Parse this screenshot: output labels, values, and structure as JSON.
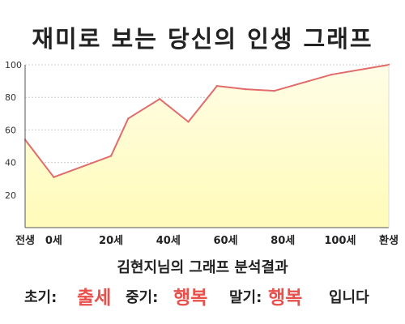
{
  "title": "재미로 보는 당신의 인생 그래프",
  "chart_data": {
    "type": "area",
    "x_labels": [
      "전생",
      "0세",
      "20세",
      "40세",
      "60세",
      "80세",
      "100세",
      "환생"
    ],
    "y_ticks": [
      "20",
      "40",
      "60",
      "80",
      "100"
    ],
    "ylim": [
      0,
      100
    ],
    "points": [
      {
        "x": -10,
        "y": 54
      },
      {
        "x": 0,
        "y": 31
      },
      {
        "x": 20,
        "y": 44
      },
      {
        "x": 26,
        "y": 67
      },
      {
        "x": 37,
        "y": 79
      },
      {
        "x": 47,
        "y": 65
      },
      {
        "x": 57,
        "y": 87
      },
      {
        "x": 67,
        "y": 85
      },
      {
        "x": 77,
        "y": 84
      },
      {
        "x": 97,
        "y": 94
      },
      {
        "x": 117,
        "y": 100
      }
    ],
    "grid": true,
    "colors": {
      "line": "#e26b6b",
      "fill": "#fffbb9",
      "fill_top": "#fffde6",
      "grid": "#cccccc",
      "axis": "#555555"
    }
  },
  "subtitle": "김현지님의 그래프 분석결과",
  "result": {
    "early_label": "초기:",
    "early_value": "출세",
    "middle_label": "중기:",
    "middle_value": "행복",
    "late_label": "말기:",
    "late_value": "행복",
    "ending": "입니다"
  }
}
